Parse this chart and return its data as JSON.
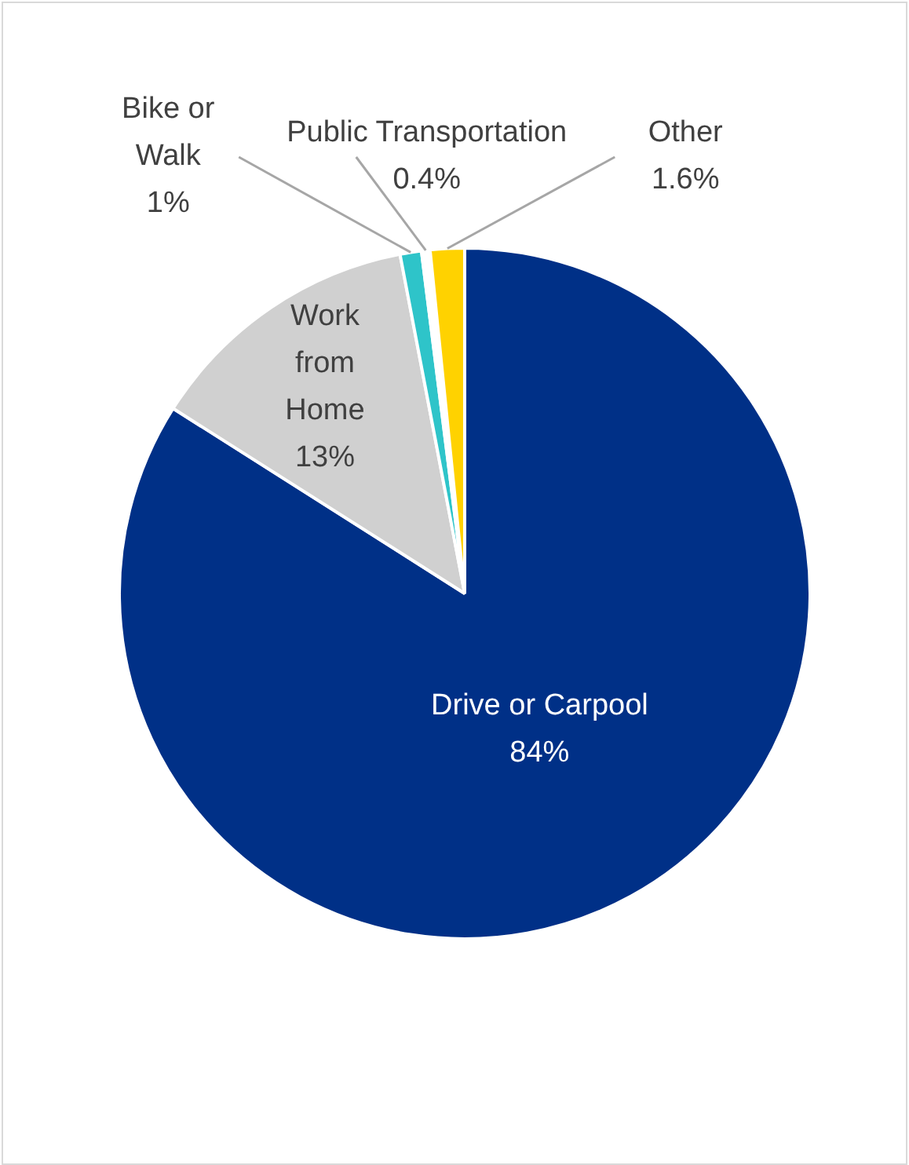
{
  "chart_data": {
    "type": "pie",
    "categories": [
      "Drive or Carpool",
      "Work from Home",
      "Bike or Walk",
      "Public Transportation",
      "Other"
    ],
    "values": [
      84,
      13,
      1,
      0.4,
      1.6
    ],
    "colors": [
      "#003087",
      "#d0d0d0",
      "#2ec4c9",
      "#ffffff",
      "#ffd200"
    ],
    "value_labels": [
      "84%",
      "13%",
      "1%",
      "0.4%",
      "1.6%"
    ],
    "legend": false
  }
}
